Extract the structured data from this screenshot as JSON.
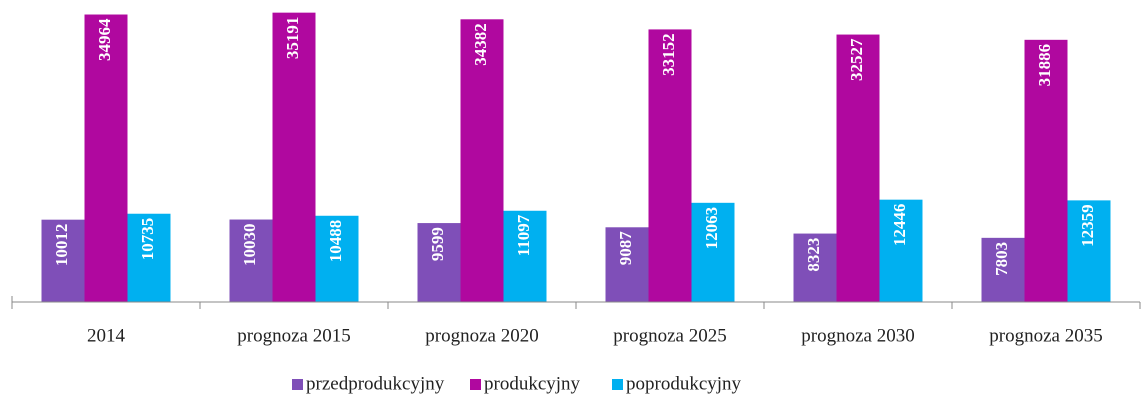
{
  "chart_data": {
    "type": "bar",
    "categories": [
      "2014",
      "prognoza 2015",
      "prognoza 2020",
      "prognoza 2025",
      "prognoza 2030",
      "prognoza 2035"
    ],
    "series": [
      {
        "name": "przedprodukcyjny",
        "color": "#7f4fb8",
        "values": [
          10012,
          10030,
          9599,
          9087,
          8323,
          7803
        ]
      },
      {
        "name": "produkcyjny",
        "color": "#b0089f",
        "values": [
          34964,
          35191,
          34382,
          33152,
          32527,
          31886
        ]
      },
      {
        "name": "poprodukcyjny",
        "color": "#00b0f0",
        "values": [
          10735,
          10488,
          11097,
          12063,
          12446,
          12359
        ]
      }
    ],
    "ylim": [
      0,
      36000
    ]
  }
}
